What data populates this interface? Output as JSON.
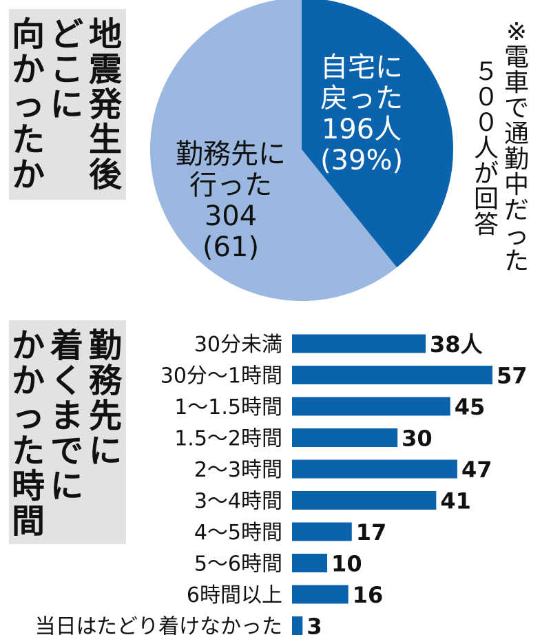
{
  "headings": {
    "pie_title_lines": [
      "地震発生後",
      "どこに",
      "向かったか"
    ],
    "bar_title_lines": [
      "勤務先に",
      "着くまでに",
      "かかった時間"
    ],
    "note_lines": [
      "※電車で通勤中だった",
      "５００人が回答"
    ]
  },
  "colors": {
    "dark_blue": "#0c63ad",
    "light_blue": "#9ab8e0",
    "label_box": "#e2e2e2"
  },
  "chart_data": [
    {
      "type": "pie",
      "title": "地震発生後どこに向かったか",
      "slices": [
        {
          "label_lines": [
            "自宅に",
            "戻った",
            "196人",
            "(39%)"
          ],
          "value": 196,
          "percent": 39,
          "color": "#0c63ad",
          "text_color": "#ffffff"
        },
        {
          "label_lines": [
            "勤務先に",
            "行った",
            "304",
            "(61)"
          ],
          "value": 304,
          "percent": 61,
          "color": "#9ab8e0",
          "text_color": "#111111"
        }
      ]
    },
    {
      "type": "bar",
      "orientation": "horizontal",
      "title": "勤務先に着くまでにかかった時間",
      "categories": [
        "30分未満",
        "30分～1時間",
        "1～1.5時間",
        "1.5～2時間",
        "2～3時間",
        "3～4時間",
        "4～5時間",
        "5～6時間",
        "6時間以上",
        "当日はたどり着けなかった"
      ],
      "values": [
        38,
        57,
        45,
        30,
        47,
        41,
        17,
        10,
        16,
        3
      ],
      "value_labels": [
        "38人",
        "57",
        "45",
        "30",
        "47",
        "41",
        "17",
        "10",
        "16",
        "3"
      ],
      "color": "#0c63ad",
      "xlim": [
        0,
        57
      ]
    }
  ]
}
